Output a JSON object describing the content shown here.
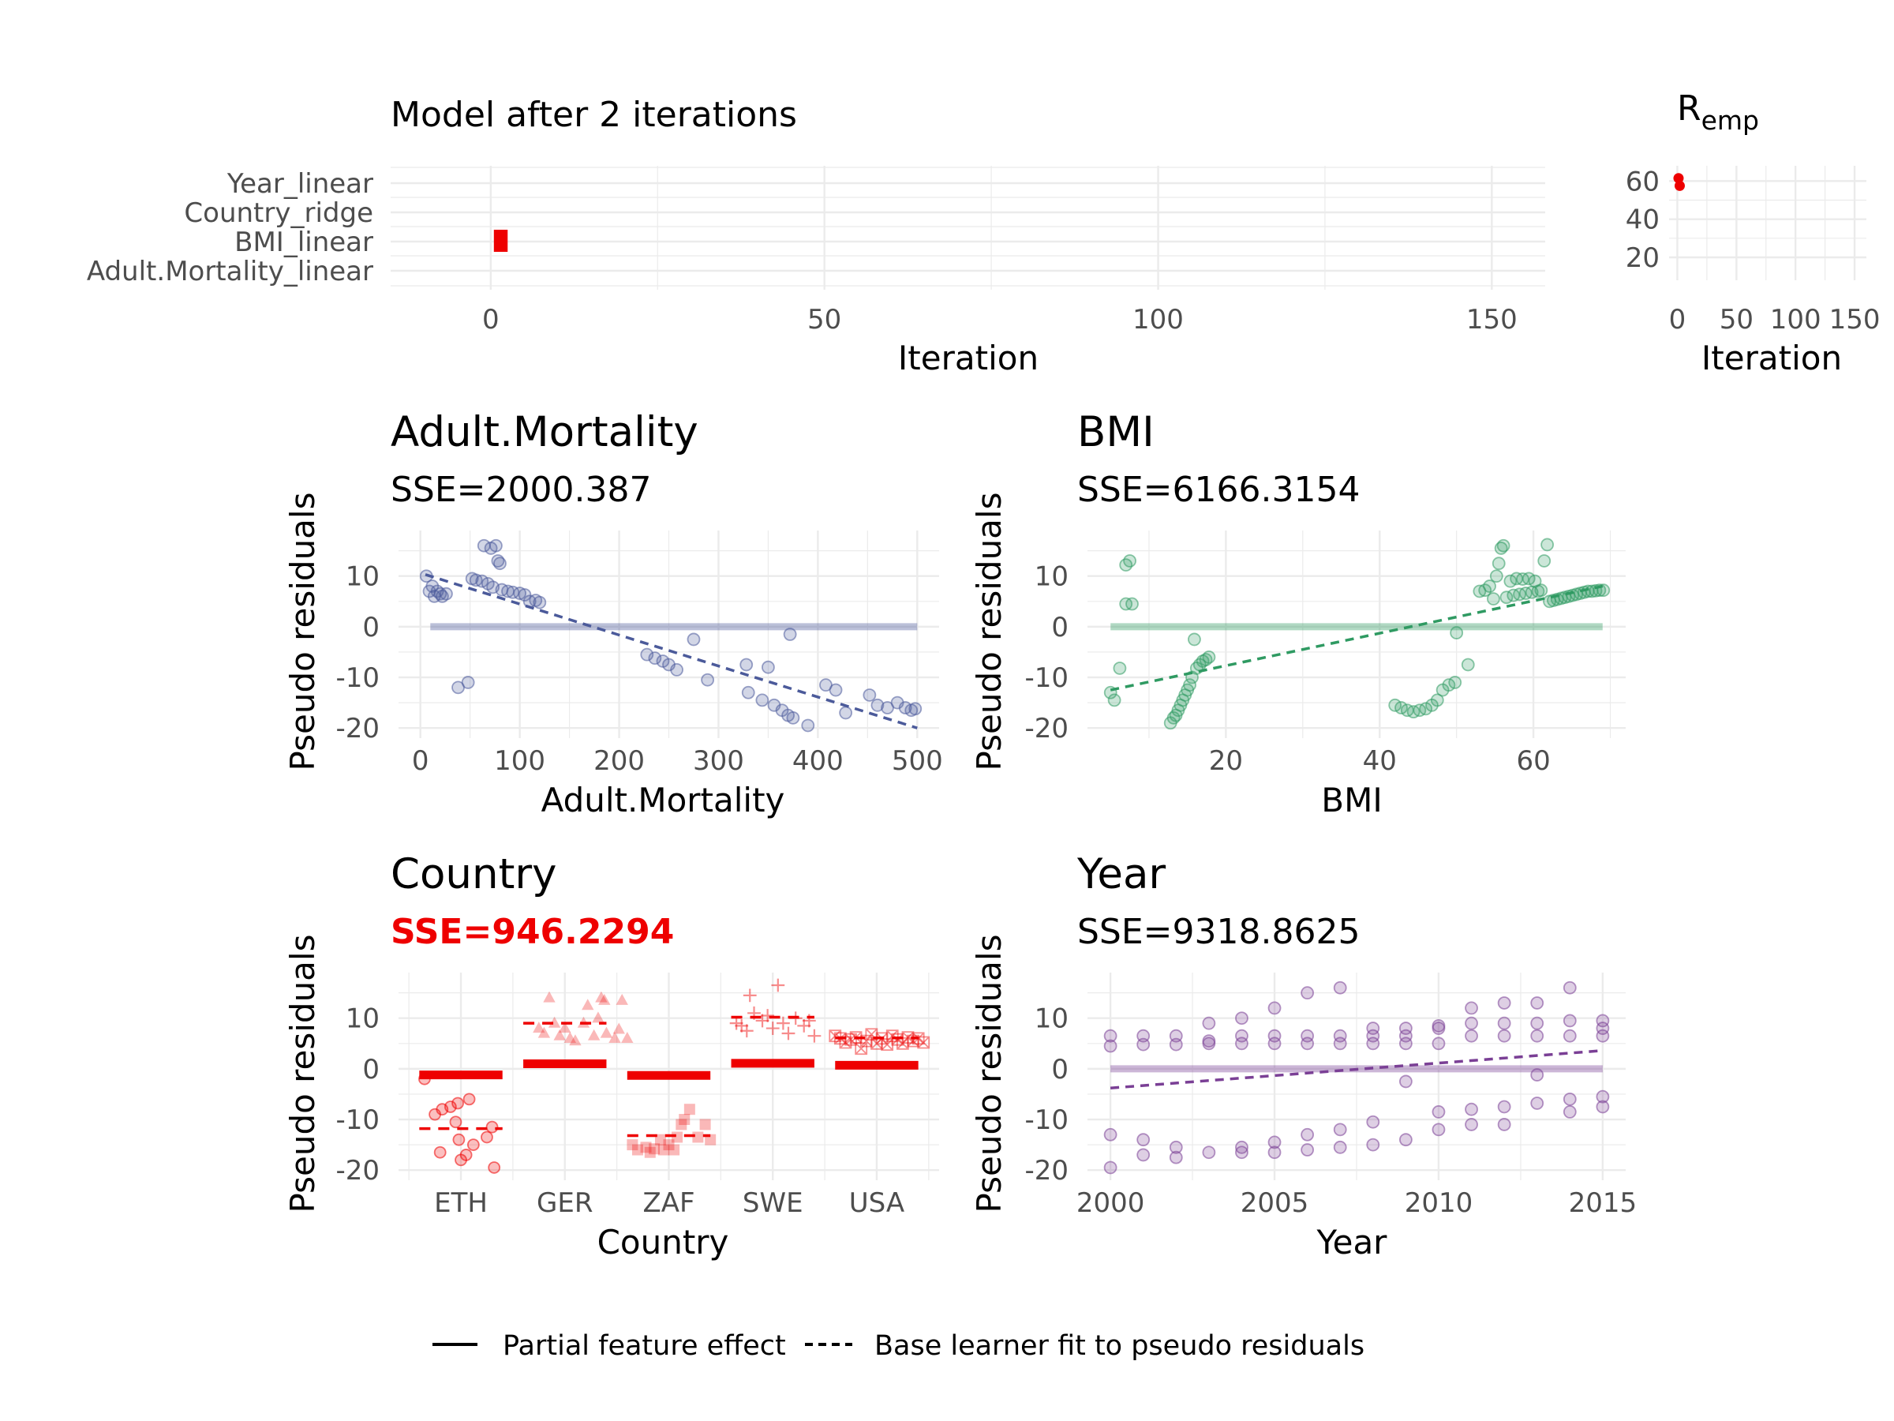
{
  "colors": {
    "Adult.Mortality": "#4b5a9a",
    "BMI": "#2f9a62",
    "Country": "#ee0000",
    "Year": "#7a3f95",
    "trace": "#ee0000"
  },
  "top": {
    "title": "Model after 2 iterations",
    "ylabels": [
      "Year_linear",
      "Country_ridge",
      "BMI_linear",
      "Adult.Mortality_linear"
    ],
    "xticks": [
      "0",
      "50",
      "100",
      "150"
    ],
    "xlabel": "Iteration",
    "xlim": [
      -15,
      158
    ],
    "selected": [
      {
        "iteration": 1,
        "learner": "Country_ridge"
      },
      {
        "iteration": 2,
        "learner": "Country_ridge"
      }
    ]
  },
  "remp": {
    "title": "R",
    "title_sub": "emp",
    "yticks": [
      "20",
      "40",
      "60"
    ],
    "xticks": [
      "0",
      "50",
      "100",
      "150"
    ],
    "xlabel": "Iteration",
    "points": [
      {
        "iteration": 1,
        "value": 61.5
      },
      {
        "iteration": 2,
        "value": 57.5
      }
    ]
  },
  "legend": {
    "solid": "Partial feature effect",
    "dashed": "Base learner fit to pseudo residuals"
  },
  "chart_data": [
    {
      "type": "scatter",
      "title": "Adult.Mortality",
      "subtitle": "SSE=2000.387",
      "xlabel": "Adult.Mortality",
      "ylabel": "Pseudo residuals",
      "xticks": [
        "0",
        "100",
        "200",
        "300",
        "400",
        "500"
      ],
      "yticks": [
        "-20",
        "-10",
        "0",
        "10"
      ],
      "xlim": [
        -22,
        522
      ],
      "ylim": [
        -22,
        19
      ],
      "effect_line": {
        "x": [
          10,
          500
        ],
        "y": [
          0,
          0
        ]
      },
      "fit_line": {
        "x": [
          5,
          500
        ],
        "y": [
          10.3,
          -20
        ]
      },
      "points": [
        [
          6,
          10
        ],
        [
          9,
          7
        ],
        [
          12,
          8
        ],
        [
          14,
          6
        ],
        [
          17,
          7
        ],
        [
          20,
          6.5
        ],
        [
          22,
          6
        ],
        [
          26,
          6.5
        ],
        [
          38,
          -12
        ],
        [
          48,
          -11
        ],
        [
          52,
          9.5
        ],
        [
          56,
          9.2
        ],
        [
          62,
          9
        ],
        [
          64,
          16
        ],
        [
          68,
          8.5
        ],
        [
          71,
          15.5
        ],
        [
          73,
          7.8
        ],
        [
          76,
          16
        ],
        [
          78,
          13
        ],
        [
          80,
          12.5
        ],
        [
          82,
          7.3
        ],
        [
          88,
          7
        ],
        [
          93,
          6.8
        ],
        [
          100,
          6.6
        ],
        [
          105,
          6.3
        ],
        [
          110,
          5
        ],
        [
          116,
          5.2
        ],
        [
          120,
          4.8
        ],
        [
          228,
          -5.5
        ],
        [
          236,
          -6.2
        ],
        [
          244,
          -6.8
        ],
        [
          250,
          -7.5
        ],
        [
          258,
          -8.5
        ],
        [
          275,
          -2.5
        ],
        [
          289,
          -10.5
        ],
        [
          328,
          -7.5
        ],
        [
          330,
          -13
        ],
        [
          344,
          -14.5
        ],
        [
          350,
          -8
        ],
        [
          356,
          -15.5
        ],
        [
          364,
          -16.5
        ],
        [
          370,
          -17.5
        ],
        [
          372,
          -1.5
        ],
        [
          375,
          -18
        ],
        [
          390,
          -19.5
        ],
        [
          408,
          -11.5
        ],
        [
          418,
          -12.5
        ],
        [
          428,
          -17
        ],
        [
          452,
          -13.5
        ],
        [
          460,
          -15.5
        ],
        [
          470,
          -16
        ],
        [
          480,
          -15
        ],
        [
          488,
          -16
        ],
        [
          494,
          -16.5
        ],
        [
          498,
          -16.2
        ]
      ]
    },
    {
      "type": "scatter",
      "title": "BMI",
      "subtitle": "SSE=6166.3154",
      "xlabel": "BMI",
      "ylabel": "Pseudo residuals",
      "xticks": [
        "20",
        "40",
        "60"
      ],
      "yticks": [
        "-20",
        "-10",
        "0",
        "10"
      ],
      "xlim": [
        2,
        72
      ],
      "ylim": [
        -22,
        19
      ],
      "effect_line": {
        "x": [
          5,
          69
        ],
        "y": [
          0,
          0
        ]
      },
      "fit_line": {
        "x": [
          5,
          69
        ],
        "y": [
          -12.5,
          8
        ]
      },
      "points": [
        [
          5,
          -13
        ],
        [
          5.5,
          -14.5
        ],
        [
          6.2,
          -8.2
        ],
        [
          7,
          4.5
        ],
        [
          7,
          12.2
        ],
        [
          7.5,
          13
        ],
        [
          7.8,
          4.5
        ],
        [
          12.8,
          -19
        ],
        [
          13.2,
          -18
        ],
        [
          13.5,
          -17.5
        ],
        [
          13.8,
          -16.5
        ],
        [
          14.1,
          -15.5
        ],
        [
          14.4,
          -14.5
        ],
        [
          14.7,
          -13.5
        ],
        [
          15,
          -12.5
        ],
        [
          15.3,
          -11.5
        ],
        [
          15.6,
          -10
        ],
        [
          15.9,
          -2.5
        ],
        [
          16.2,
          -8.2
        ],
        [
          16.6,
          -7.5
        ],
        [
          17,
          -6.8
        ],
        [
          17.4,
          -6.5
        ],
        [
          17.8,
          -6
        ],
        [
          42,
          -15.5
        ],
        [
          42.8,
          -16
        ],
        [
          43.6,
          -16.5
        ],
        [
          44.4,
          -16.8
        ],
        [
          45.2,
          -16.5
        ],
        [
          46,
          -16.2
        ],
        [
          46.8,
          -15.5
        ],
        [
          47.5,
          -14.5
        ],
        [
          48.2,
          -12.5
        ],
        [
          49,
          -11.5
        ],
        [
          49.8,
          -11
        ],
        [
          50,
          -1.2
        ],
        [
          51.5,
          -7.5
        ],
        [
          53,
          7
        ],
        [
          53.7,
          7.2
        ],
        [
          54.3,
          8
        ],
        [
          54.8,
          5.5
        ],
        [
          55.2,
          10
        ],
        [
          55.5,
          12.5
        ],
        [
          55.8,
          15.5
        ],
        [
          56.1,
          16
        ],
        [
          56.5,
          5.8
        ],
        [
          57,
          9
        ],
        [
          57.4,
          6.2
        ],
        [
          57.8,
          9.5
        ],
        [
          58.2,
          6.4
        ],
        [
          58.6,
          9.4
        ],
        [
          59,
          6.6
        ],
        [
          59.4,
          9.5
        ],
        [
          59.8,
          6.8
        ],
        [
          60.2,
          9
        ],
        [
          60.6,
          7
        ],
        [
          61,
          7.2
        ],
        [
          61.4,
          13
        ],
        [
          61.8,
          16.2
        ],
        [
          62.1,
          5
        ],
        [
          62.6,
          5.2
        ],
        [
          63.1,
          5.4
        ],
        [
          63.6,
          5.6
        ],
        [
          64.1,
          5.8
        ],
        [
          64.6,
          6
        ],
        [
          65.1,
          6.2
        ],
        [
          65.6,
          6.4
        ],
        [
          66.1,
          6.6
        ],
        [
          66.6,
          6.8
        ],
        [
          67.1,
          7
        ],
        [
          67.6,
          7
        ],
        [
          68.1,
          7.1
        ],
        [
          68.6,
          7.2
        ],
        [
          69.1,
          7.2
        ]
      ]
    },
    {
      "type": "scatter",
      "title": "Country",
      "subtitle": "SSE=946.2294",
      "xlabel": "Country",
      "ylabel": "Pseudo residuals",
      "categories": [
        "ETH",
        "GER",
        "ZAF",
        "SWE",
        "USA"
      ],
      "shapes": [
        "circle",
        "triangle",
        "square",
        "plus",
        "boxx"
      ],
      "yticks": [
        "-20",
        "-10",
        "0",
        "10"
      ],
      "ylim": [
        -22,
        19
      ],
      "effect": [
        -1.2,
        1.0,
        -1.3,
        1.1,
        0.7
      ],
      "fit": [
        -11.8,
        9.0,
        -13.2,
        10.2,
        6.1
      ],
      "points": [
        [
          [
            0.15,
            -2
          ],
          [
            0.25,
            -9
          ],
          [
            0.3,
            -16.5
          ],
          [
            0.32,
            -8
          ],
          [
            0.4,
            -7.5
          ],
          [
            0.45,
            -10.5
          ],
          [
            0.47,
            -6.8
          ],
          [
            0.48,
            -14
          ],
          [
            0.5,
            -18
          ],
          [
            0.55,
            -17
          ],
          [
            0.58,
            -6
          ],
          [
            0.62,
            -15
          ],
          [
            0.75,
            -13.5
          ],
          [
            0.8,
            -11.5
          ],
          [
            0.82,
            -19.5
          ]
        ],
        [
          [
            1.25,
            8
          ],
          [
            1.3,
            7
          ],
          [
            1.35,
            14
          ],
          [
            1.4,
            9
          ],
          [
            1.45,
            6.5
          ],
          [
            1.5,
            8
          ],
          [
            1.55,
            6
          ],
          [
            1.6,
            5.5
          ],
          [
            1.68,
            9
          ],
          [
            1.72,
            12.5
          ],
          [
            1.78,
            6.5
          ],
          [
            1.82,
            10
          ],
          [
            1.85,
            14
          ],
          [
            1.88,
            13.5
          ],
          [
            1.9,
            7
          ],
          [
            1.98,
            6
          ],
          [
            2.02,
            7.8
          ],
          [
            2.05,
            13.5
          ],
          [
            2.1,
            6
          ]
        ],
        [
          [
            2.15,
            -15
          ],
          [
            2.2,
            -16
          ],
          [
            2.28,
            -15.5
          ],
          [
            2.32,
            -16.5
          ],
          [
            2.36,
            -15.8
          ],
          [
            2.42,
            -14
          ],
          [
            2.45,
            -16
          ],
          [
            2.5,
            -15
          ],
          [
            2.55,
            -16
          ],
          [
            2.58,
            -13.5
          ],
          [
            2.62,
            -11
          ],
          [
            2.65,
            -10
          ],
          [
            2.7,
            -8
          ],
          [
            2.78,
            -13.5
          ],
          [
            2.85,
            -11
          ],
          [
            2.9,
            -14
          ]
        ],
        [
          [
            3.15,
            9
          ],
          [
            3.2,
            8.5
          ],
          [
            3.25,
            7.5
          ],
          [
            3.28,
            14.5
          ],
          [
            3.32,
            11
          ],
          [
            3.4,
            9.5
          ],
          [
            3.45,
            10.5
          ],
          [
            3.5,
            8
          ],
          [
            3.55,
            16.5
          ],
          [
            3.6,
            9
          ],
          [
            3.65,
            7
          ],
          [
            3.72,
            10
          ],
          [
            3.8,
            8.5
          ],
          [
            3.85,
            9.5
          ],
          [
            3.9,
            6.5
          ]
        ],
        [
          [
            4.1,
            6.5
          ],
          [
            4.15,
            6
          ],
          [
            4.2,
            5.2
          ],
          [
            4.25,
            5.8
          ],
          [
            4.3,
            6.2
          ],
          [
            4.35,
            4
          ],
          [
            4.4,
            5.5
          ],
          [
            4.45,
            6.8
          ],
          [
            4.5,
            5
          ],
          [
            4.55,
            6
          ],
          [
            4.6,
            4.8
          ],
          [
            4.65,
            6.5
          ],
          [
            4.7,
            5.8
          ],
          [
            4.75,
            5
          ],
          [
            4.8,
            6.2
          ],
          [
            4.85,
            5.5
          ],
          [
            4.9,
            6
          ],
          [
            4.95,
            5.2
          ]
        ]
      ]
    },
    {
      "type": "scatter",
      "title": "Year",
      "subtitle": "SSE=9318.8625",
      "xlabel": "Year",
      "ylabel": "Pseudo residuals",
      "xticks": [
        "2000",
        "2005",
        "2010",
        "2015"
      ],
      "yticks": [
        "-20",
        "-10",
        "0",
        "10"
      ],
      "xlim": [
        1999.3,
        2015.7
      ],
      "ylim": [
        -22,
        19
      ],
      "effect_line": {
        "x": [
          2000,
          2015
        ],
        "y": [
          0,
          0
        ]
      },
      "fit_line": {
        "x": [
          2000,
          2015
        ],
        "y": [
          -3.8,
          3.6
        ]
      },
      "points": [
        [
          2000,
          6.5
        ],
        [
          2000,
          4.5
        ],
        [
          2000,
          -13
        ],
        [
          2000,
          -19.5
        ],
        [
          2001,
          6.5
        ],
        [
          2001,
          4.8
        ],
        [
          2001,
          -14
        ],
        [
          2001,
          -17
        ],
        [
          2002,
          6.5
        ],
        [
          2002,
          4.8
        ],
        [
          2002,
          -15.5
        ],
        [
          2002,
          -17.5
        ],
        [
          2003,
          9
        ],
        [
          2003,
          5.5
        ],
        [
          2003,
          5
        ],
        [
          2003,
          -16.5
        ],
        [
          2004,
          10
        ],
        [
          2004,
          6.5
        ],
        [
          2004,
          5
        ],
        [
          2004,
          -15.5
        ],
        [
          2004,
          -16.5
        ],
        [
          2005,
          12
        ],
        [
          2005,
          6.5
        ],
        [
          2005,
          5
        ],
        [
          2005,
          -14.5
        ],
        [
          2005,
          -16.5
        ],
        [
          2006,
          15
        ],
        [
          2006,
          6.5
        ],
        [
          2006,
          5
        ],
        [
          2006,
          -13
        ],
        [
          2006,
          -16
        ],
        [
          2007,
          16
        ],
        [
          2007,
          6.5
        ],
        [
          2007,
          5
        ],
        [
          2007,
          -12
        ],
        [
          2007,
          -15.5
        ],
        [
          2008,
          8
        ],
        [
          2008,
          6.5
        ],
        [
          2008,
          5
        ],
        [
          2008,
          -10.5
        ],
        [
          2008,
          -15
        ],
        [
          2009,
          8
        ],
        [
          2009,
          6.5
        ],
        [
          2009,
          5
        ],
        [
          2009,
          -2.5
        ],
        [
          2009,
          -14
        ],
        [
          2010,
          8.5
        ],
        [
          2010,
          8
        ],
        [
          2010,
          5
        ],
        [
          2010,
          -8.5
        ],
        [
          2010,
          -12
        ],
        [
          2011,
          12
        ],
        [
          2011,
          9
        ],
        [
          2011,
          6.5
        ],
        [
          2011,
          -8
        ],
        [
          2011,
          -11
        ],
        [
          2012,
          13
        ],
        [
          2012,
          9
        ],
        [
          2012,
          6.5
        ],
        [
          2012,
          -7.5
        ],
        [
          2012,
          -11
        ],
        [
          2013,
          13
        ],
        [
          2013,
          9
        ],
        [
          2013,
          6.5
        ],
        [
          2013,
          -1.2
        ],
        [
          2013,
          -6.8
        ],
        [
          2014,
          16
        ],
        [
          2014,
          9.5
        ],
        [
          2014,
          6.5
        ],
        [
          2014,
          -6
        ],
        [
          2014,
          -8.5
        ],
        [
          2015,
          9.5
        ],
        [
          2015,
          8
        ],
        [
          2015,
          6.5
        ],
        [
          2015,
          -5.5
        ],
        [
          2015,
          -7.5
        ]
      ]
    }
  ]
}
